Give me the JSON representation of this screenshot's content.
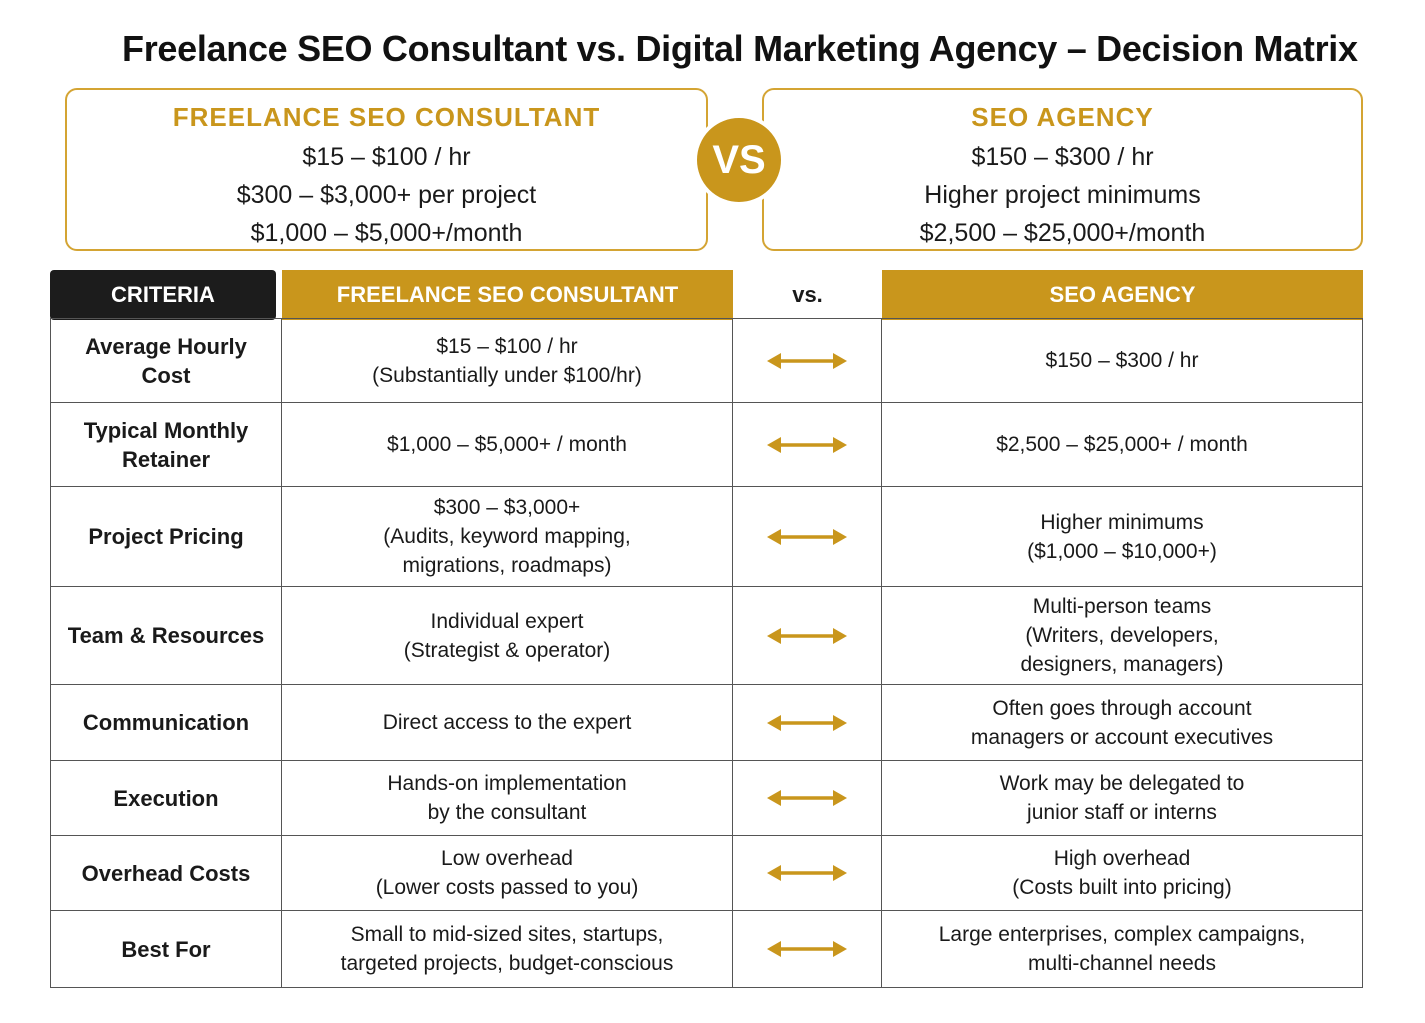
{
  "title": "Freelance SEO Consultant vs. Digital Marketing Agency – Decision Matrix",
  "summary": {
    "left": {
      "title": "FREELANCE SEO CONSULTANT",
      "lines": [
        "$15 – $100 / hr",
        "$300 – $3,000+ per project",
        "$1,000 – $5,000+/month"
      ]
    },
    "vs": "VS",
    "right": {
      "title": "SEO AGENCY",
      "lines": [
        "$150 – $300 / hr",
        "Higher project minimums",
        "$2,500 – $25,000+/month"
      ]
    }
  },
  "table": {
    "headers": {
      "criteria": "CRITERIA",
      "freelance": "FREELANCE SEO CONSULTANT",
      "vs": "vs.",
      "agency": "SEO AGENCY"
    },
    "rows": [
      {
        "criteria": [
          "Average Hourly Cost"
        ],
        "freelance": [
          "$15 – $100 / hr",
          "(Substantially under $100/hr)"
        ],
        "agency": [
          "$150 – $300 / hr"
        ]
      },
      {
        "criteria": [
          "Typical Monthly",
          "Retainer"
        ],
        "freelance": [
          "$1,000 – $5,000+ / month"
        ],
        "agency": [
          "$2,500 – $25,000+ / month"
        ]
      },
      {
        "criteria": [
          "Project Pricing"
        ],
        "freelance": [
          "$300 – $3,000+",
          "(Audits, keyword mapping,",
          "migrations, roadmaps)"
        ],
        "agency": [
          "Higher minimums",
          "($1,000 – $10,000+)"
        ]
      },
      {
        "criteria": [
          "Team & Resources"
        ],
        "freelance": [
          "Individual expert",
          "(Strategist & operator)"
        ],
        "agency": [
          "Multi-person teams",
          "(Writers, developers,",
          "designers, managers)"
        ]
      },
      {
        "criteria": [
          "Communication"
        ],
        "freelance": [
          "Direct access to the expert"
        ],
        "agency": [
          "Often goes through account",
          "managers or account executives"
        ]
      },
      {
        "criteria": [
          "Execution"
        ],
        "freelance": [
          "Hands-on implementation",
          "by the consultant"
        ],
        "agency": [
          "Work may be delegated to",
          "junior staff or interns"
        ]
      },
      {
        "criteria": [
          "Overhead Costs"
        ],
        "freelance": [
          "Low overhead",
          "(Lower costs passed to you)"
        ],
        "agency": [
          "High overhead",
          "(Costs built into pricing)"
        ]
      },
      {
        "criteria": [
          "Best For"
        ],
        "freelance": [
          "Small to mid-sized sites, startups,",
          "targeted projects, budget-conscious"
        ],
        "agency": [
          "Large enterprises, complex campaigns,",
          "multi-channel needs"
        ]
      }
    ]
  },
  "colors": {
    "accent": "#c9961c",
    "header_dark": "#1c1c1c",
    "border_gold": "#d4a433"
  },
  "icons": {
    "row_arrow": "double-headed-arrow-icon"
  }
}
